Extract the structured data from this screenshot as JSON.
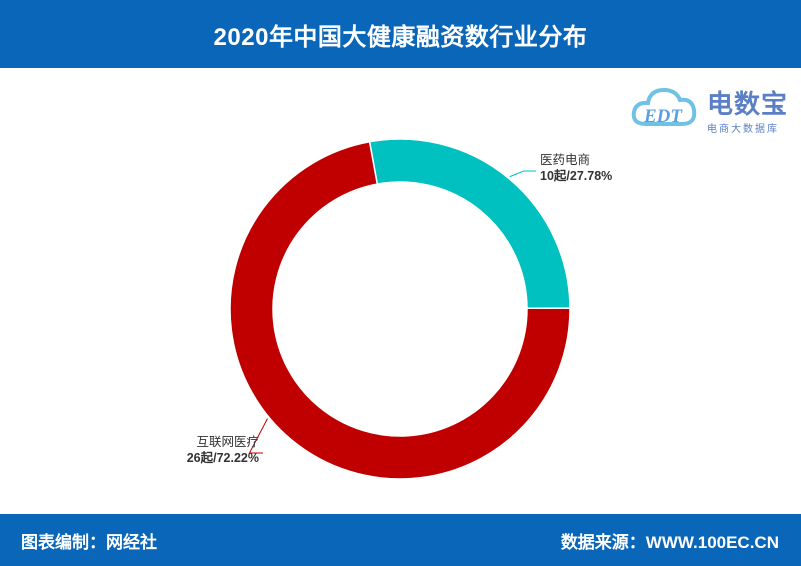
{
  "header": {
    "title": "2020年中国大健康融资数行业分布"
  },
  "logo": {
    "text": "电数宝",
    "subtitle": "电商大数据库",
    "badge": "EDT"
  },
  "footer": {
    "left": "图表编制：网经社",
    "right": "数据来源：WWW.100EC.CN"
  },
  "chart_data": {
    "type": "pie",
    "variant": "donut",
    "title": "2020年中国大健康融资数行业分布",
    "series": [
      {
        "name": "医药电商",
        "value": 10,
        "unit": "起",
        "percent": "27.78%",
        "color": "#00c0c0"
      },
      {
        "name": "互联网医疗",
        "value": 26,
        "unit": "起",
        "percent": "72.22%",
        "color": "#c00000"
      }
    ],
    "labels": [
      {
        "name": "医药电商",
        "value_text": "10起/27.78%"
      },
      {
        "name": "互联网医疗",
        "value_text": "26起/72.22%"
      }
    ]
  }
}
